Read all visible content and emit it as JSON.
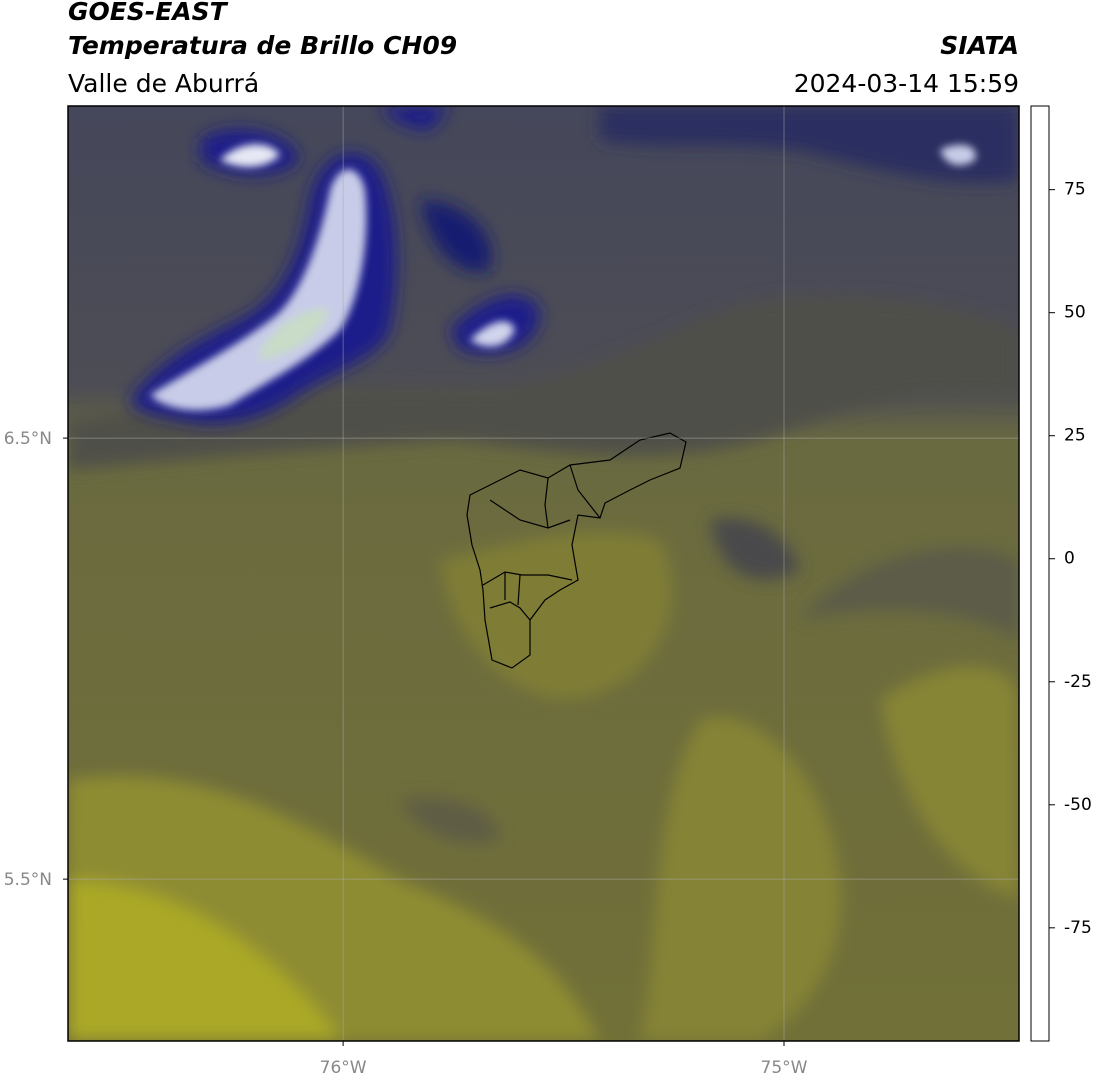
{
  "header": {
    "title": "GOES-EAST",
    "subtitle": "Temperatura de Brillo CH09",
    "region": "Valle de Aburrá",
    "source": "SIATA",
    "timestamp": "2024-03-14 15:59"
  },
  "map": {
    "xlim": [
      -76.624,
      -74.467
    ],
    "ylim": [
      5.133,
      7.253
    ],
    "xticks": [
      {
        "value": -76,
        "label": "76°W"
      },
      {
        "value": -75,
        "label": "75°W"
      }
    ],
    "yticks": [
      {
        "value": 6.5,
        "label": "6.5°N"
      },
      {
        "value": 5.5,
        "label": "5.5°N"
      }
    ],
    "grid": true
  },
  "colorbar": {
    "lim": [
      -98,
      92
    ],
    "ticks": [
      75,
      50,
      25,
      0,
      -25,
      -50,
      -75
    ],
    "stops": [
      {
        "value": -98,
        "color": "#ffffff"
      },
      {
        "value": -93,
        "color": "#ffffff"
      },
      {
        "value": -93,
        "color": "#00e5e0"
      },
      {
        "value": -80,
        "color": "#20b090"
      },
      {
        "value": -65,
        "color": "#3a8a2a"
      },
      {
        "value": -57,
        "color": "#5a9040"
      },
      {
        "value": -52,
        "color": "#e8f0e8"
      },
      {
        "value": -49,
        "color": "#ffffff"
      },
      {
        "value": -43,
        "color": "#a0a8d0"
      },
      {
        "value": -35,
        "color": "#4050a0"
      },
      {
        "value": -28,
        "color": "#000080"
      },
      {
        "value": -25,
        "color": "#2a2a50"
      },
      {
        "value": -22,
        "color": "#505040"
      },
      {
        "value": -15,
        "color": "#8a8a30"
      },
      {
        "value": -10,
        "color": "#e8e000"
      },
      {
        "value": -5,
        "color": "#ffaa00"
      },
      {
        "value": 3,
        "color": "#ff6000"
      },
      {
        "value": 8,
        "color": "#ff0000"
      },
      {
        "value": 8,
        "color": "#000000"
      },
      {
        "value": 92,
        "color": "#000000"
      }
    ]
  }
}
